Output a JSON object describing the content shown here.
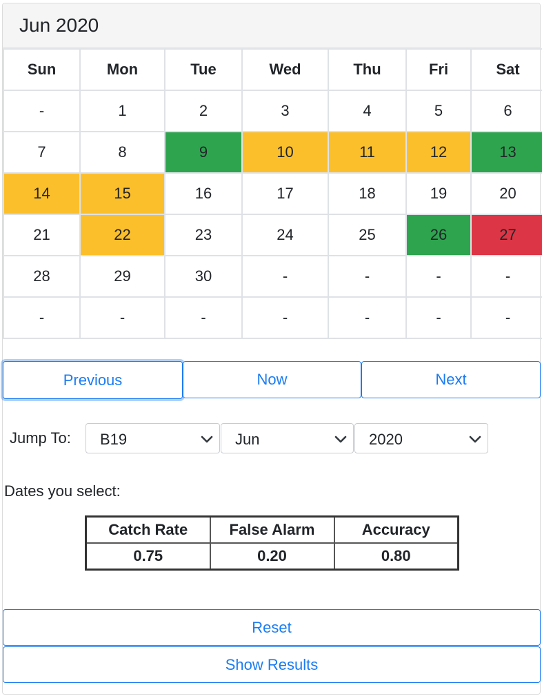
{
  "calendar": {
    "title": "Jun 2020",
    "weekdays": [
      "Sun",
      "Mon",
      "Tue",
      "Wed",
      "Thu",
      "Fri",
      "Sat"
    ],
    "weeks": [
      [
        "-",
        "1",
        "2",
        "3",
        "4",
        "5",
        "6"
      ],
      [
        "7",
        "8",
        "9",
        "10",
        "11",
        "12",
        "13"
      ],
      [
        "14",
        "15",
        "16",
        "17",
        "18",
        "19",
        "20"
      ],
      [
        "21",
        "22",
        "23",
        "24",
        "25",
        "26",
        "27"
      ],
      [
        "28",
        "29",
        "30",
        "-",
        "-",
        "-",
        "-"
      ],
      [
        "-",
        "-",
        "-",
        "-",
        "-",
        "-",
        "-"
      ]
    ],
    "highlights": {
      "green": [
        "9",
        "13",
        "26"
      ],
      "yellow": [
        "10",
        "11",
        "12",
        "14",
        "15",
        "22"
      ],
      "red": [
        "27"
      ]
    },
    "colors": {
      "green": "#2ea44f",
      "yellow": "#fcbf2c",
      "red": "#dc3545"
    }
  },
  "nav": {
    "previous": "Previous",
    "now": "Now",
    "next": "Next"
  },
  "jump": {
    "label": "Jump To:",
    "id_value": "B19",
    "month_value": "Jun",
    "year_value": "2020",
    "icon": "chevron-down-icon"
  },
  "selection": {
    "label": "Dates you select:",
    "headers": [
      "Catch Rate",
      "False Alarm",
      "Accuracy"
    ],
    "values": [
      "0.75",
      "0.20",
      "0.80"
    ]
  },
  "actions": {
    "reset": "Reset",
    "show_results": "Show Results"
  },
  "accent_color": "#1a7cf3"
}
